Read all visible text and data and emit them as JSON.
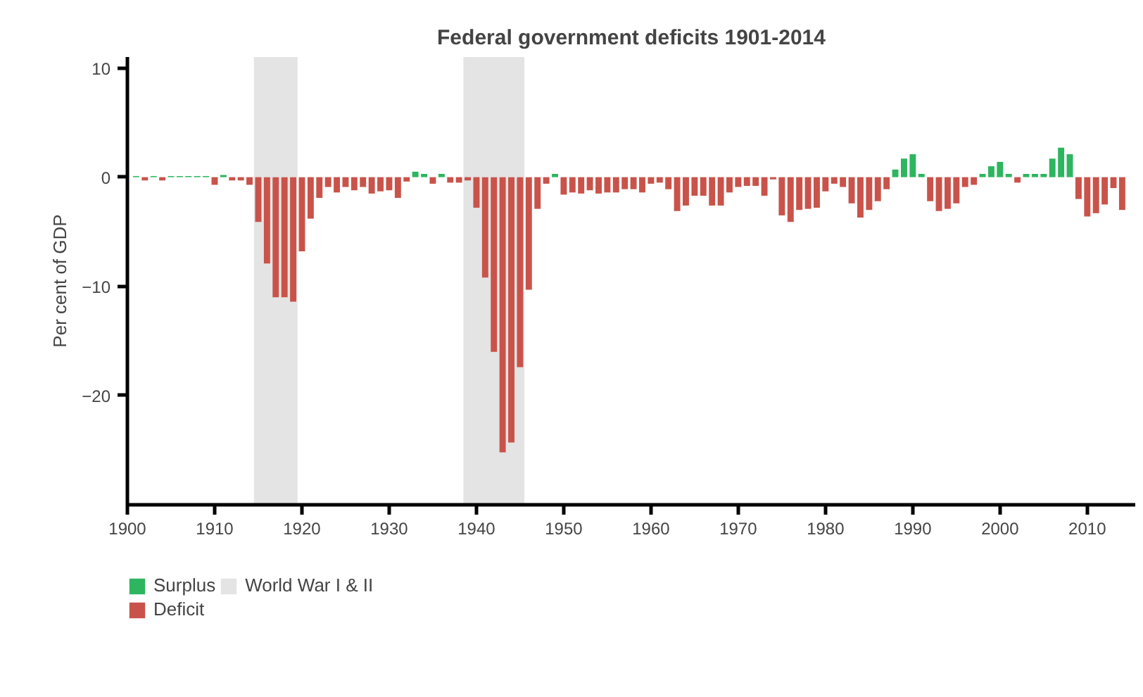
{
  "chart_data": {
    "type": "bar",
    "title": "Federal government deficits 1901-2014",
    "ylabel": "Per cent of GDP",
    "x": [
      1901,
      1902,
      1903,
      1904,
      1905,
      1906,
      1907,
      1908,
      1909,
      1910,
      1911,
      1912,
      1913,
      1914,
      1915,
      1916,
      1917,
      1918,
      1919,
      1920,
      1921,
      1922,
      1923,
      1924,
      1925,
      1926,
      1927,
      1928,
      1929,
      1930,
      1931,
      1932,
      1933,
      1934,
      1935,
      1936,
      1937,
      1938,
      1939,
      1940,
      1941,
      1942,
      1943,
      1944,
      1945,
      1946,
      1947,
      1948,
      1949,
      1950,
      1951,
      1952,
      1953,
      1954,
      1955,
      1956,
      1957,
      1958,
      1959,
      1960,
      1961,
      1962,
      1963,
      1964,
      1965,
      1966,
      1967,
      1968,
      1969,
      1970,
      1971,
      1972,
      1973,
      1974,
      1975,
      1976,
      1977,
      1978,
      1979,
      1980,
      1981,
      1982,
      1983,
      1984,
      1985,
      1986,
      1987,
      1988,
      1989,
      1990,
      1991,
      1992,
      1993,
      1994,
      1995,
      1996,
      1997,
      1998,
      1999,
      2000,
      2001,
      2002,
      2003,
      2004,
      2005,
      2006,
      2007,
      2008,
      2009,
      2010,
      2011,
      2012,
      2013,
      2014
    ],
    "series": [
      {
        "name": "Surplus",
        "color": "#2eb560",
        "values": [
          0.1,
          null,
          0.1,
          null,
          0.1,
          0.1,
          0.1,
          0.1,
          0.1,
          null,
          0.2,
          null,
          null,
          null,
          null,
          null,
          null,
          null,
          null,
          null,
          null,
          null,
          null,
          null,
          null,
          null,
          null,
          null,
          null,
          null,
          null,
          null,
          0.5,
          0.3,
          null,
          0.3,
          null,
          null,
          null,
          null,
          null,
          null,
          null,
          null,
          null,
          null,
          null,
          null,
          0.3,
          null,
          null,
          null,
          null,
          null,
          null,
          null,
          null,
          null,
          null,
          null,
          null,
          null,
          null,
          null,
          null,
          null,
          null,
          null,
          null,
          null,
          null,
          null,
          null,
          null,
          null,
          null,
          null,
          null,
          null,
          null,
          null,
          null,
          null,
          null,
          null,
          null,
          null,
          0.7,
          1.7,
          2.1,
          0.3,
          null,
          null,
          null,
          null,
          null,
          null,
          0.3,
          1.0,
          1.4,
          0.3,
          null,
          0.3,
          0.3,
          0.3,
          1.7,
          2.7,
          2.1,
          null,
          null,
          null,
          null,
          null,
          null
        ]
      },
      {
        "name": "Deficit",
        "color": "#c9534a",
        "values": [
          null,
          -0.3,
          null,
          -0.3,
          null,
          null,
          null,
          null,
          null,
          -0.7,
          null,
          -0.3,
          -0.3,
          -0.7,
          -4.1,
          -7.9,
          -11.0,
          -11.0,
          -11.4,
          -6.8,
          -3.8,
          -1.9,
          -0.9,
          -1.4,
          -0.9,
          -1.2,
          -0.9,
          -1.5,
          -1.3,
          -1.2,
          -1.9,
          -0.4,
          null,
          null,
          -0.6,
          null,
          -0.5,
          -0.5,
          -0.3,
          -2.8,
          -9.2,
          -16.0,
          -25.2,
          -24.3,
          -17.4,
          -10.3,
          -2.9,
          -0.6,
          null,
          -1.6,
          -1.4,
          -1.5,
          -1.2,
          -1.5,
          -1.4,
          -1.4,
          -1.1,
          -1.1,
          -1.4,
          -0.6,
          -0.5,
          -1.1,
          -3.1,
          -2.6,
          -1.7,
          -1.7,
          -2.6,
          -2.6,
          -1.4,
          -0.9,
          -0.8,
          -0.8,
          -1.7,
          -0.2,
          -3.5,
          -4.1,
          -3.0,
          -2.9,
          -2.8,
          -1.3,
          -0.6,
          -0.9,
          -2.4,
          -3.7,
          -3.0,
          -2.2,
          -1.1,
          null,
          null,
          null,
          null,
          -2.2,
          -3.1,
          -2.9,
          -2.4,
          -0.9,
          -0.7,
          null,
          null,
          null,
          null,
          -0.5,
          null,
          null,
          null,
          null,
          null,
          null,
          -2.0,
          -3.6,
          -3.3,
          -2.5,
          -1.0,
          -3.0
        ]
      }
    ],
    "bands": [
      {
        "axis": "x",
        "from": 1914.5,
        "to": 1919.5,
        "label": "World War I & II",
        "color": "#8c8c8c"
      },
      {
        "axis": "x",
        "from": 1938.5,
        "to": 1945.5,
        "color": "#8c8c8c"
      }
    ],
    "xlim": [
      1900,
      2015.5
    ],
    "xticks": [
      1900,
      1910,
      1920,
      1930,
      1940,
      1950,
      1960,
      1970,
      1980,
      1990,
      2000,
      2010
    ],
    "ylim": [
      -30,
      11
    ],
    "yticks": [
      -20,
      -10,
      0,
      10
    ],
    "grid": false,
    "legend": "bottom"
  }
}
